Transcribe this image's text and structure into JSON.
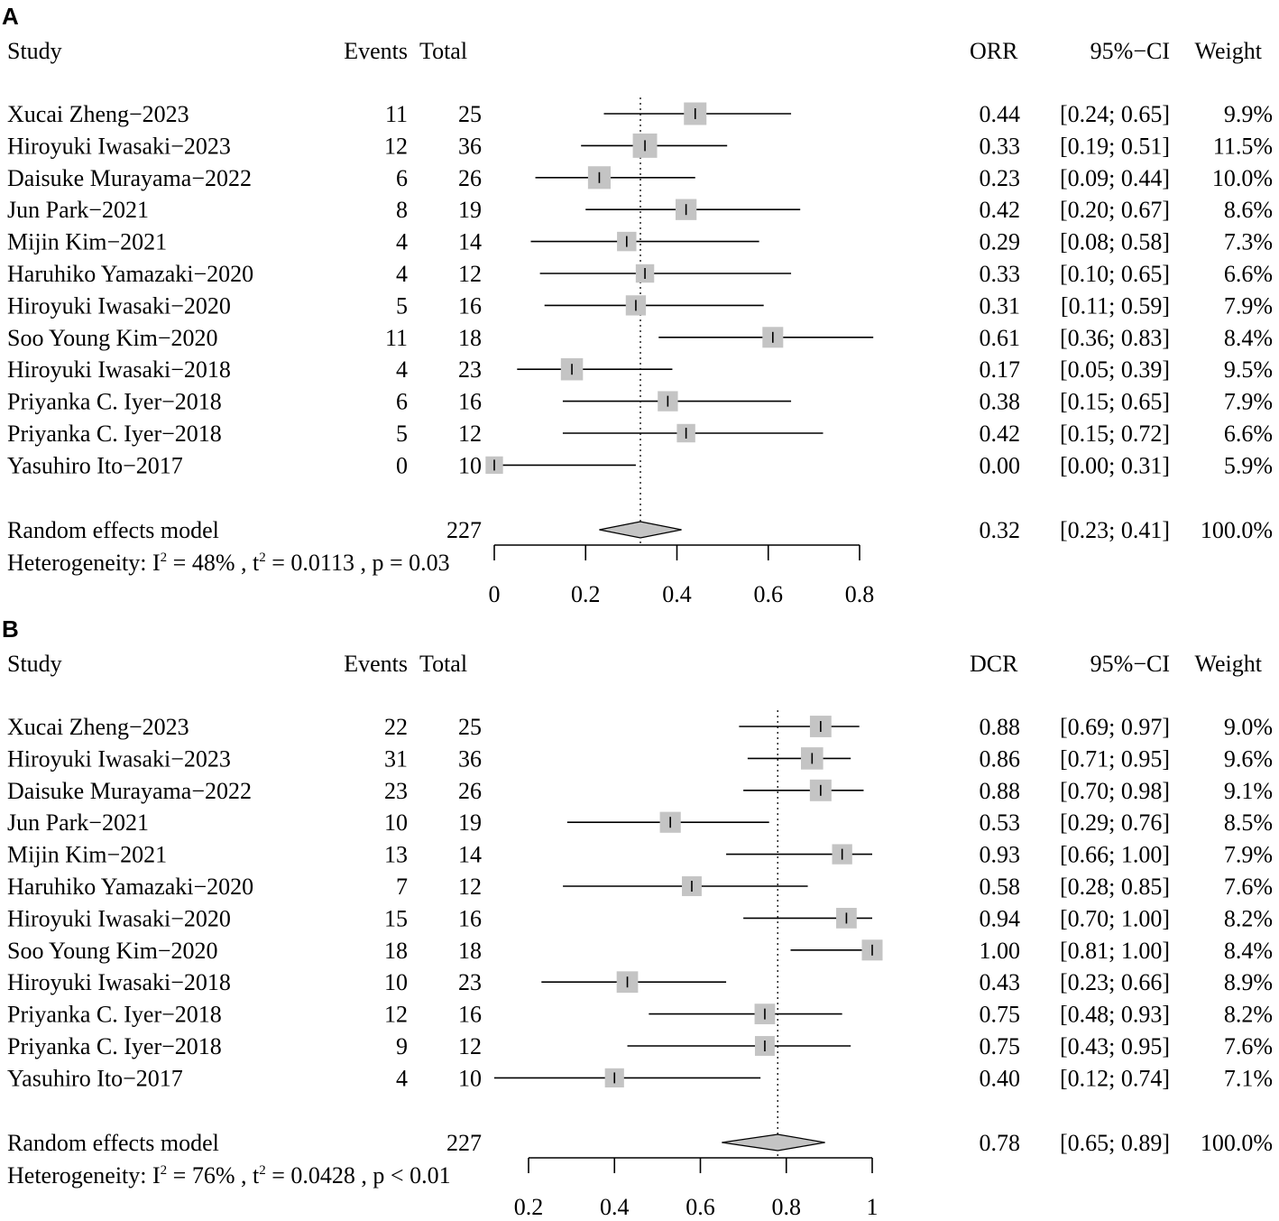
{
  "chart_data": [
    {
      "type": "forest",
      "panel_label": "A",
      "headers": {
        "study": "Study",
        "events": "Events",
        "total": "Total",
        "estimate": "ORR",
        "ci": "95%−CI",
        "weight": "Weight"
      },
      "studies": [
        {
          "name": "Xucai Zheng−2023",
          "events": "11",
          "total": "25",
          "est": 0.44,
          "lo": 0.24,
          "hi": 0.65,
          "est_text": "0.44",
          "ci_text": "[0.24; 0.65]",
          "weight_text": "9.9%",
          "weight": 9.9
        },
        {
          "name": "Hiroyuki Iwasaki−2023",
          "events": "12",
          "total": "36",
          "est": 0.33,
          "lo": 0.19,
          "hi": 0.51,
          "est_text": "0.33",
          "ci_text": "[0.19; 0.51]",
          "weight_text": "11.5%",
          "weight": 11.5
        },
        {
          "name": "Daisuke Murayama−2022",
          "events": "6",
          "total": "26",
          "est": 0.23,
          "lo": 0.09,
          "hi": 0.44,
          "est_text": "0.23",
          "ci_text": "[0.09; 0.44]",
          "weight_text": "10.0%",
          "weight": 10.0
        },
        {
          "name": "Jun Park−2021",
          "events": "8",
          "total": "19",
          "est": 0.42,
          "lo": 0.2,
          "hi": 0.67,
          "est_text": "0.42",
          "ci_text": "[0.20; 0.67]",
          "weight_text": "8.6%",
          "weight": 8.6
        },
        {
          "name": "Mijin Kim−2021",
          "events": "4",
          "total": "14",
          "est": 0.29,
          "lo": 0.08,
          "hi": 0.58,
          "est_text": "0.29",
          "ci_text": "[0.08; 0.58]",
          "weight_text": "7.3%",
          "weight": 7.3
        },
        {
          "name": "Haruhiko Yamazaki−2020",
          "events": "4",
          "total": "12",
          "est": 0.33,
          "lo": 0.1,
          "hi": 0.65,
          "est_text": "0.33",
          "ci_text": "[0.10; 0.65]",
          "weight_text": "6.6%",
          "weight": 6.6
        },
        {
          "name": "Hiroyuki Iwasaki−2020",
          "events": "5",
          "total": "16",
          "est": 0.31,
          "lo": 0.11,
          "hi": 0.59,
          "est_text": "0.31",
          "ci_text": "[0.11; 0.59]",
          "weight_text": "7.9%",
          "weight": 7.9
        },
        {
          "name": "Soo Young Kim−2020",
          "events": "11",
          "total": "18",
          "est": 0.61,
          "lo": 0.36,
          "hi": 0.83,
          "est_text": "0.61",
          "ci_text": "[0.36; 0.83]",
          "weight_text": "8.4%",
          "weight": 8.4
        },
        {
          "name": "Hiroyuki Iwasaki−2018",
          "events": "4",
          "total": "23",
          "est": 0.17,
          "lo": 0.05,
          "hi": 0.39,
          "est_text": "0.17",
          "ci_text": "[0.05; 0.39]",
          "weight_text": "9.5%",
          "weight": 9.5
        },
        {
          "name": "Priyanka C. Iyer−2018",
          "events": "6",
          "total": "16",
          "est": 0.38,
          "lo": 0.15,
          "hi": 0.65,
          "est_text": "0.38",
          "ci_text": "[0.15; 0.65]",
          "weight_text": "7.9%",
          "weight": 7.9
        },
        {
          "name": "Priyanka C. Iyer−2018",
          "events": "5",
          "total": "12",
          "est": 0.42,
          "lo": 0.15,
          "hi": 0.72,
          "est_text": "0.42",
          "ci_text": "[0.15; 0.72]",
          "weight_text": "6.6%",
          "weight": 6.6
        },
        {
          "name": "Yasuhiro Ito−2017",
          "events": "0",
          "total": "10",
          "est": 0.0,
          "lo": 0.0,
          "hi": 0.31,
          "est_text": "0.00",
          "ci_text": "[0.00; 0.31]",
          "weight_text": "5.9%",
          "weight": 5.9
        }
      ],
      "pooled": {
        "label": "Random effects model",
        "total": "227",
        "est": 0.32,
        "lo": 0.23,
        "hi": 0.41,
        "est_text": "0.32",
        "ci_text": "[0.23; 0.41]",
        "weight_text": "100.0%"
      },
      "heterogeneity": {
        "prefix": "Heterogeneity:",
        "i2": "48%",
        "tau2": "0.0113",
        "p": "= 0.03"
      },
      "xlim": [
        0,
        0.8
      ],
      "ticks": [
        0,
        0.2,
        0.4,
        0.6,
        0.8
      ],
      "tick_labels": [
        "0",
        "0.2",
        "0.4",
        "0.6",
        "0.8"
      ]
    },
    {
      "type": "forest",
      "panel_label": "B",
      "headers": {
        "study": "Study",
        "events": "Events",
        "total": "Total",
        "estimate": "DCR",
        "ci": "95%−CI",
        "weight": "Weight"
      },
      "studies": [
        {
          "name": "Xucai Zheng−2023",
          "events": "22",
          "total": "25",
          "est": 0.88,
          "lo": 0.69,
          "hi": 0.97,
          "est_text": "0.88",
          "ci_text": "[0.69; 0.97]",
          "weight_text": "9.0%",
          "weight": 9.0
        },
        {
          "name": "Hiroyuki Iwasaki−2023",
          "events": "31",
          "total": "36",
          "est": 0.86,
          "lo": 0.71,
          "hi": 0.95,
          "est_text": "0.86",
          "ci_text": "[0.71; 0.95]",
          "weight_text": "9.6%",
          "weight": 9.6
        },
        {
          "name": "Daisuke Murayama−2022",
          "events": "23",
          "total": "26",
          "est": 0.88,
          "lo": 0.7,
          "hi": 0.98,
          "est_text": "0.88",
          "ci_text": "[0.70; 0.98]",
          "weight_text": "9.1%",
          "weight": 9.1
        },
        {
          "name": "Jun Park−2021",
          "events": "10",
          "total": "19",
          "est": 0.53,
          "lo": 0.29,
          "hi": 0.76,
          "est_text": "0.53",
          "ci_text": "[0.29; 0.76]",
          "weight_text": "8.5%",
          "weight": 8.5
        },
        {
          "name": "Mijin Kim−2021",
          "events": "13",
          "total": "14",
          "est": 0.93,
          "lo": 0.66,
          "hi": 1.0,
          "est_text": "0.93",
          "ci_text": "[0.66; 1.00]",
          "weight_text": "7.9%",
          "weight": 7.9
        },
        {
          "name": "Haruhiko Yamazaki−2020",
          "events": "7",
          "total": "12",
          "est": 0.58,
          "lo": 0.28,
          "hi": 0.85,
          "est_text": "0.58",
          "ci_text": "[0.28; 0.85]",
          "weight_text": "7.6%",
          "weight": 7.6
        },
        {
          "name": "Hiroyuki Iwasaki−2020",
          "events": "15",
          "total": "16",
          "est": 0.94,
          "lo": 0.7,
          "hi": 1.0,
          "est_text": "0.94",
          "ci_text": "[0.70; 1.00]",
          "weight_text": "8.2%",
          "weight": 8.2
        },
        {
          "name": "Soo Young Kim−2020",
          "events": "18",
          "total": "18",
          "est": 1.0,
          "lo": 0.81,
          "hi": 1.0,
          "est_text": "1.00",
          "ci_text": "[0.81; 1.00]",
          "weight_text": "8.4%",
          "weight": 8.4
        },
        {
          "name": "Hiroyuki Iwasaki−2018",
          "events": "10",
          "total": "23",
          "est": 0.43,
          "lo": 0.23,
          "hi": 0.66,
          "est_text": "0.43",
          "ci_text": "[0.23; 0.66]",
          "weight_text": "8.9%",
          "weight": 8.9
        },
        {
          "name": "Priyanka C. Iyer−2018",
          "events": "12",
          "total": "16",
          "est": 0.75,
          "lo": 0.48,
          "hi": 0.93,
          "est_text": "0.75",
          "ci_text": "[0.48; 0.93]",
          "weight_text": "8.2%",
          "weight": 8.2
        },
        {
          "name": "Priyanka C. Iyer−2018",
          "events": "9",
          "total": "12",
          "est": 0.75,
          "lo": 0.43,
          "hi": 0.95,
          "est_text": "0.75",
          "ci_text": "[0.43; 0.95]",
          "weight_text": "7.6%",
          "weight": 7.6
        },
        {
          "name": "Yasuhiro Ito−2017",
          "events": "4",
          "total": "10",
          "est": 0.4,
          "lo": 0.12,
          "hi": 0.74,
          "est_text": "0.40",
          "ci_text": "[0.12; 0.74]",
          "weight_text": "7.1%",
          "weight": 7.1
        }
      ],
      "pooled": {
        "label": "Random effects model",
        "total": "227",
        "est": 0.78,
        "lo": 0.65,
        "hi": 0.89,
        "est_text": "0.78",
        "ci_text": "[0.65; 0.89]",
        "weight_text": "100.0%"
      },
      "heterogeneity": {
        "prefix": "Heterogeneity:",
        "i2": "76%",
        "tau2": "0.0428",
        "p": "< 0.01"
      },
      "xlim": [
        0.2,
        1.0
      ],
      "ticks": [
        0.2,
        0.4,
        0.6,
        0.8,
        1.0
      ],
      "tick_labels": [
        "0.2",
        "0.4",
        "0.6",
        "0.8",
        "1"
      ]
    }
  ]
}
